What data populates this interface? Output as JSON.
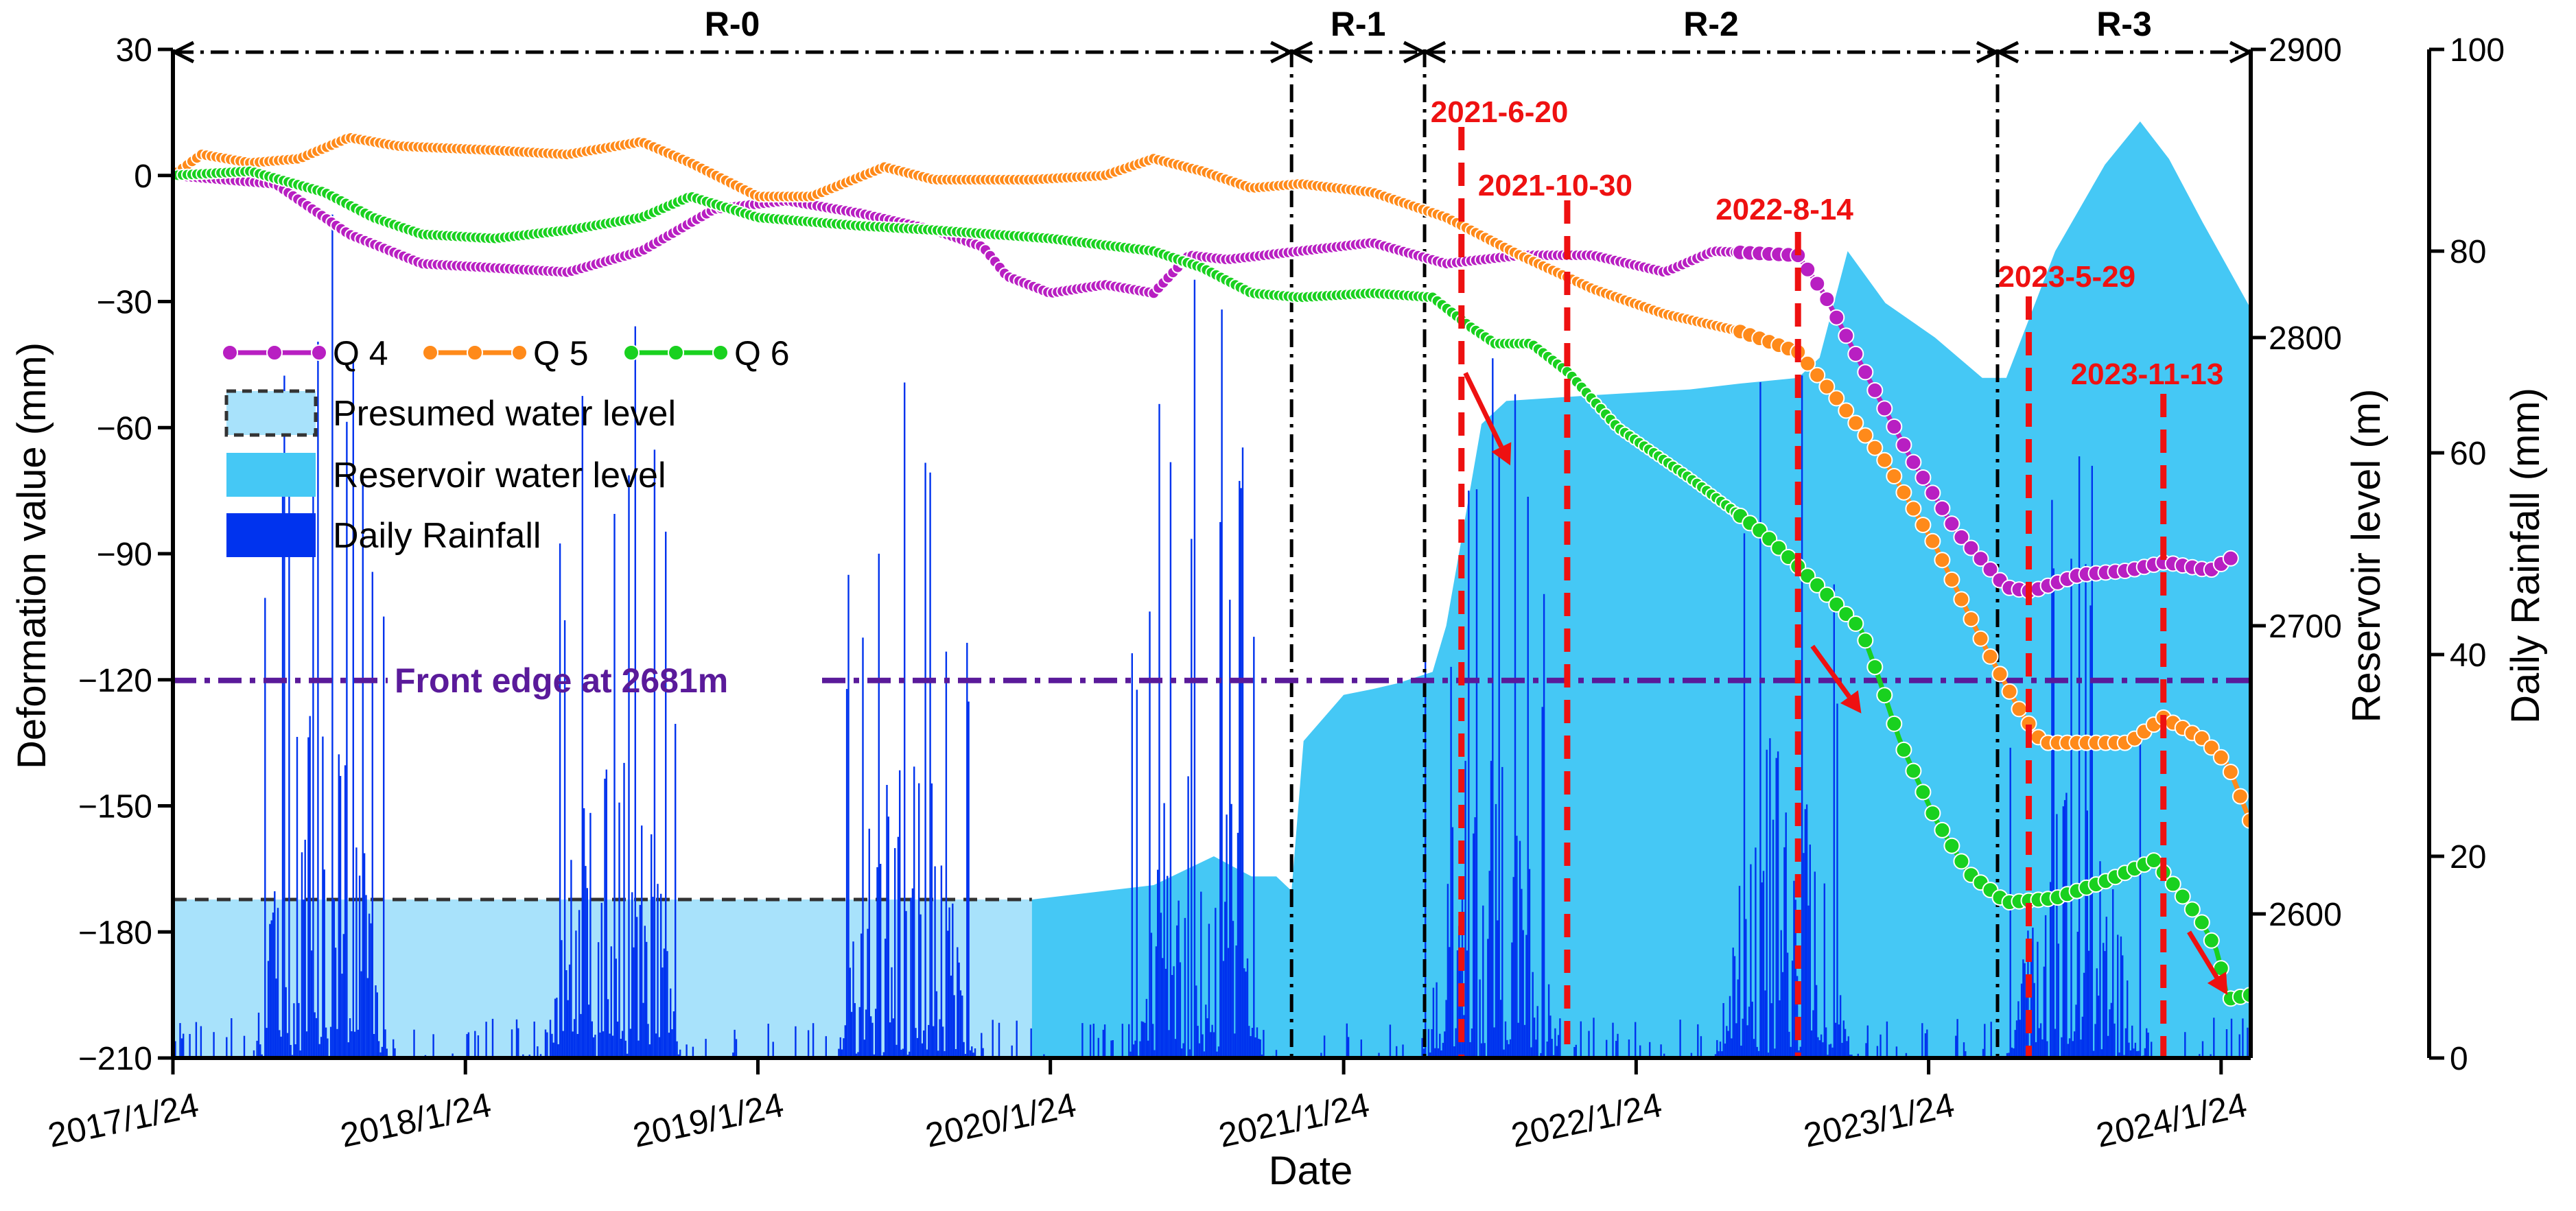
{
  "chart_data": {
    "type": "line",
    "xlabel": "Date",
    "x_ticks": [
      "2017/1/24",
      "2018/1/24",
      "2019/1/24",
      "2020/1/24",
      "2021/1/24",
      "2022/1/24",
      "2023/1/24",
      "2024/1/24"
    ],
    "x_range": [
      "2017/1/24",
      "2024/3/1"
    ],
    "y_left": {
      "label": "Deformation value (mm)",
      "range": [
        -210,
        30
      ],
      "ticks": [
        30,
        0,
        -30,
        -60,
        -90,
        -120,
        -150,
        -180,
        -210
      ]
    },
    "y_right1": {
      "label": "Reservoir level (m)",
      "range": [
        2550,
        2900
      ],
      "ticks": [
        2600,
        2700,
        2800,
        2900
      ]
    },
    "y_right2": {
      "label": "Daily Rainfall  (mm)",
      "range": [
        0,
        100
      ],
      "ticks": [
        0,
        20,
        40,
        60,
        80,
        100
      ]
    },
    "stages": [
      {
        "label": "R-0",
        "start": "2017/1/24",
        "end": "2020/11/20"
      },
      {
        "label": "R-1",
        "start": "2020/11/20",
        "end": "2021/5/5"
      },
      {
        "label": "R-2",
        "start": "2021/5/5",
        "end": "2023/4/20"
      },
      {
        "label": "R-3",
        "start": "2023/4/20",
        "end": "2024/3/1"
      }
    ],
    "event_lines": [
      {
        "label": "2021-6-20",
        "date": "2021/6/20"
      },
      {
        "label": "2021-10-30",
        "date": "2021/10/30"
      },
      {
        "label": "2022-8-14",
        "date": "2022/8/14"
      },
      {
        "label": "2023-5-29",
        "date": "2023/5/29"
      },
      {
        "label": "2023-11-13",
        "date": "2023/11/13"
      }
    ],
    "front_edge": {
      "label": "Front edge at 2681m",
      "reservoir_level": 2681
    },
    "legend": {
      "position": "upper-left",
      "items": [
        "Q 4",
        "Q 5",
        "Q 6",
        "Presumed water level",
        "Reservoir water level",
        "Daily Rainfall"
      ]
    },
    "colors": {
      "Q 4": "#b81fc2",
      "Q 5": "#ff8a1a",
      "Q 6": "#19d11f",
      "presumed": "#a8e2fb",
      "reservoir": "#45c8f5",
      "rainfall": "#0033ee",
      "front_edge": "#5a1a9a",
      "event": "#ee1111"
    },
    "series": [
      {
        "name": "Q 4",
        "points": [
          [
            "2017/1/24",
            0
          ],
          [
            "2017/6/1",
            -2
          ],
          [
            "2017/9/1",
            -14
          ],
          [
            "2017/12/1",
            -21
          ],
          [
            "2018/3/1",
            -22
          ],
          [
            "2018/6/1",
            -23
          ],
          [
            "2018/9/1",
            -18
          ],
          [
            "2018/12/1",
            -8
          ],
          [
            "2019/3/1",
            -6
          ],
          [
            "2019/6/1",
            -9
          ],
          [
            "2019/9/1",
            -13
          ],
          [
            "2019/11/1",
            -17
          ],
          [
            "2019/12/1",
            -24
          ],
          [
            "2020/1/24",
            -28
          ],
          [
            "2020/4/1",
            -26
          ],
          [
            "2020/6/1",
            -28
          ],
          [
            "2020/7/15",
            -19
          ],
          [
            "2020/9/1",
            -20
          ],
          [
            "2020/12/1",
            -18
          ],
          [
            "2021/3/1",
            -16
          ],
          [
            "2021/6/1",
            -21
          ],
          [
            "2021/9/1",
            -19
          ],
          [
            "2021/12/1",
            -19
          ],
          [
            "2022/3/1",
            -23
          ],
          [
            "2022/5/1",
            -18
          ],
          [
            "2022/8/14",
            -19
          ],
          [
            "2022/9/15",
            -28
          ],
          [
            "2022/11/1",
            -45
          ],
          [
            "2023/1/1",
            -67
          ],
          [
            "2023/3/1",
            -85
          ],
          [
            "2023/5/1",
            -98
          ],
          [
            "2023/6/1",
            -99
          ],
          [
            "2023/8/1",
            -95
          ],
          [
            "2023/10/1",
            -94
          ],
          [
            "2023/11/15",
            -92
          ],
          [
            "2024/1/10",
            -94
          ],
          [
            "2024/2/15",
            -90
          ]
        ]
      },
      {
        "name": "Q 5",
        "points": [
          [
            "2017/1/24",
            0
          ],
          [
            "2017/3/1",
            5
          ],
          [
            "2017/5/1",
            3
          ],
          [
            "2017/7/1",
            4
          ],
          [
            "2017/9/1",
            9
          ],
          [
            "2017/11/1",
            7
          ],
          [
            "2018/3/1",
            6
          ],
          [
            "2018/6/1",
            5
          ],
          [
            "2018/9/1",
            8
          ],
          [
            "2018/11/1",
            3
          ],
          [
            "2019/1/24",
            -5
          ],
          [
            "2019/4/1",
            -5
          ],
          [
            "2019/7/1",
            2
          ],
          [
            "2019/9/1",
            -1
          ],
          [
            "2020/1/1",
            -1
          ],
          [
            "2020/4/1",
            0
          ],
          [
            "2020/6/1",
            4
          ],
          [
            "2020/8/1",
            1
          ],
          [
            "2020/10/1",
            -3
          ],
          [
            "2020/12/1",
            -2
          ],
          [
            "2021/3/1",
            -4
          ],
          [
            "2021/6/1",
            -10
          ],
          [
            "2021/9/1",
            -19
          ],
          [
            "2021/12/1",
            -27
          ],
          [
            "2022/3/1",
            -33
          ],
          [
            "2022/6/1",
            -37
          ],
          [
            "2022/8/14",
            -42
          ],
          [
            "2022/10/1",
            -53
          ],
          [
            "2022/12/1",
            -68
          ],
          [
            "2023/2/1",
            -88
          ],
          [
            "2023/4/1",
            -111
          ],
          [
            "2023/5/20",
            -128
          ],
          [
            "2023/6/15",
            -135
          ],
          [
            "2023/8/15",
            -135
          ],
          [
            "2023/10/1",
            -135
          ],
          [
            "2023/11/13",
            -129
          ],
          [
            "2024/1/1",
            -134
          ],
          [
            "2024/2/1",
            -140
          ],
          [
            "2024/3/1",
            -154
          ]
        ]
      },
      {
        "name": "Q 6",
        "points": [
          [
            "2017/1/24",
            0
          ],
          [
            "2017/5/1",
            1
          ],
          [
            "2017/8/1",
            -4
          ],
          [
            "2017/10/1",
            -10
          ],
          [
            "2017/12/1",
            -14
          ],
          [
            "2018/3/1",
            -15
          ],
          [
            "2018/6/1",
            -13
          ],
          [
            "2018/9/1",
            -10
          ],
          [
            "2018/11/1",
            -5
          ],
          [
            "2019/1/24",
            -10
          ],
          [
            "2019/6/1",
            -12
          ],
          [
            "2019/9/1",
            -13
          ],
          [
            "2020/1/24",
            -15
          ],
          [
            "2020/6/1",
            -18
          ],
          [
            "2020/8/1",
            -22
          ],
          [
            "2020/10/1",
            -28
          ],
          [
            "2020/12/1",
            -29
          ],
          [
            "2021/3/1",
            -28
          ],
          [
            "2021/5/15",
            -29
          ],
          [
            "2021/7/1",
            -36
          ],
          [
            "2021/8/1",
            -40
          ],
          [
            "2021/9/15",
            -40
          ],
          [
            "2021/11/1",
            -47
          ],
          [
            "2022/1/1",
            -60
          ],
          [
            "2022/4/1",
            -72
          ],
          [
            "2022/7/1",
            -85
          ],
          [
            "2022/8/14",
            -93
          ],
          [
            "2022/9/15",
            -99
          ],
          [
            "2022/11/1",
            -108
          ],
          [
            "2022/11/20",
            -118
          ],
          [
            "2022/12/20",
            -135
          ],
          [
            "2023/2/1",
            -153
          ],
          [
            "2023/3/15",
            -166
          ],
          [
            "2023/5/1",
            -173
          ],
          [
            "2023/7/1",
            -172
          ],
          [
            "2023/9/1",
            -168
          ],
          [
            "2023/11/1",
            -163
          ],
          [
            "2023/12/1",
            -170
          ],
          [
            "2024/1/1",
            -178
          ],
          [
            "2024/1/20",
            -185
          ],
          [
            "2024/2/1",
            -196
          ],
          [
            "2024/3/1",
            -195
          ]
        ]
      }
    ],
    "reservoir_level": {
      "presumed_until": "2020/1/1",
      "presumed_level": 2605,
      "points": [
        [
          "2020/1/1",
          2605
        ],
        [
          "2020/6/1",
          2610
        ],
        [
          "2020/8/15",
          2620
        ],
        [
          "2020/10/1",
          2613
        ],
        [
          "2020/11/1",
          2613
        ],
        [
          "2020/11/20",
          2608
        ],
        [
          "2020/12/5",
          2660
        ],
        [
          "2021/1/24",
          2676
        ],
        [
          "2021/3/1",
          2678
        ],
        [
          "2021/4/1",
          2680
        ],
        [
          "2021/5/15",
          2684
        ],
        [
          "2021/6/1",
          2700
        ],
        [
          "2021/6/20",
          2730
        ],
        [
          "2021/7/15",
          2770
        ],
        [
          "2021/8/15",
          2778
        ],
        [
          "2021/12/1",
          2780
        ],
        [
          "2022/4/1",
          2782
        ],
        [
          "2022/6/1",
          2784
        ],
        [
          "2022/8/14",
          2786
        ],
        [
          "2022/9/10",
          2793
        ],
        [
          "2022/10/15",
          2830
        ],
        [
          "2022/12/1",
          2812
        ],
        [
          "2023/2/1",
          2800
        ],
        [
          "2023/4/1",
          2786
        ],
        [
          "2023/5/1",
          2786
        ],
        [
          "2023/7/1",
          2830
        ],
        [
          "2023/9/1",
          2860
        ],
        [
          "2023/10/15",
          2875
        ],
        [
          "2023/11/20",
          2862
        ],
        [
          "2024/1/1",
          2840
        ],
        [
          "2024/3/1",
          2810
        ]
      ]
    },
    "rainfall_wet_seasons": [
      {
        "start": "2017/5/1",
        "end": "2017/10/20",
        "peak": 86
      },
      {
        "start": "2018/5/1",
        "end": "2018/10/20",
        "peak": 80
      },
      {
        "start": "2019/5/1",
        "end": "2019/10/20",
        "peak": 78
      },
      {
        "start": "2020/5/1",
        "end": "2020/10/20",
        "peak": 80
      },
      {
        "start": "2021/5/1",
        "end": "2021/10/20",
        "peak": 80
      },
      {
        "start": "2022/5/1",
        "end": "2022/10/20",
        "peak": 74
      },
      {
        "start": "2023/5/1",
        "end": "2023/10/20",
        "peak": 62
      }
    ]
  }
}
